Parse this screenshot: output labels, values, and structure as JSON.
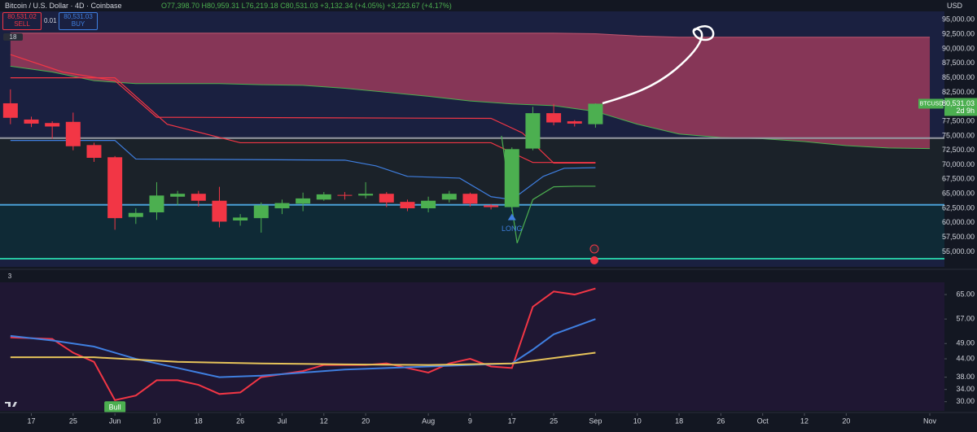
{
  "header": {
    "title": "Bitcoin / U.S. Dollar · 4D · Coinbase",
    "ohlc": "O77,398.70 H80,959.31 L76,219.18 C80,531.03 +3,132.34 (+4.05%) +3,223.67 (+4.17%)",
    "currency": "USD"
  },
  "trade": {
    "sell_price": "80,531.02",
    "sell": "SELL",
    "spread": "0.01",
    "buy_price": "80,531.03",
    "buy": "BUY"
  },
  "chart_data": [
    {
      "type": "candlestick",
      "pane_label": "18",
      "x": [
        0,
        4,
        8,
        12,
        16,
        20,
        24,
        28,
        32,
        36,
        40,
        44,
        48,
        52,
        56,
        60,
        64,
        68,
        72,
        76,
        80,
        84,
        88,
        92,
        96,
        100,
        104,
        108,
        112
      ],
      "open": [
        80600,
        77800,
        77200,
        77400,
        73400,
        71300,
        61000,
        61800,
        64500,
        65000,
        63800,
        60400,
        60800,
        62500,
        63300,
        64000,
        64800,
        64700,
        65000,
        63600,
        62500,
        64000,
        65000,
        63000,
        62700,
        72800,
        78900,
        77500,
        77000
      ],
      "high": [
        83000,
        78300,
        77500,
        79000,
        73800,
        71500,
        62500,
        67000,
        65500,
        65500,
        66200,
        61500,
        63500,
        64000,
        65200,
        65300,
        65300,
        67000,
        65300,
        64000,
        64500,
        65500,
        65200,
        63200,
        73000,
        80000,
        80500,
        77700,
        80600
      ],
      "low": [
        77000,
        76500,
        74500,
        72500,
        70500,
        58800,
        59800,
        60500,
        63000,
        62800,
        59200,
        59500,
        58300,
        61500,
        62000,
        63800,
        64000,
        64200,
        62700,
        62000,
        61800,
        63500,
        62800,
        62300,
        62000,
        72500,
        76800,
        76600,
        76400
      ],
      "close": [
        78100,
        77100,
        76600,
        73200,
        71200,
        60800,
        61700,
        64700,
        65000,
        63800,
        60200,
        60900,
        63000,
        63400,
        64200,
        64900,
        64700,
        65000,
        63500,
        62500,
        63800,
        65000,
        63300,
        62700,
        72700,
        78900,
        77300,
        77100,
        80531.03
      ],
      "up_color": "#4caf50",
      "down_color": "#f23645",
      "cloud": {
        "color": "#a13c5c",
        "x": [
          0,
          8,
          16,
          24,
          32,
          40,
          48,
          56,
          64,
          72,
          80,
          88,
          96,
          104,
          112,
          120,
          128,
          136,
          144,
          152,
          160,
          168,
          176
        ],
        "upper": [
          92700,
          92700,
          92700,
          92700,
          92700,
          92700,
          92700,
          92700,
          92700,
          92700,
          92700,
          92700,
          92700,
          92700,
          92600,
          92200,
          92000,
          92000,
          92000,
          92000,
          92000,
          92000,
          92000
        ],
        "lower": [
          87000,
          86000,
          84500,
          84000,
          84000,
          84000,
          83800,
          83700,
          83200,
          82500,
          81800,
          81000,
          80500,
          80200,
          79200,
          77000,
          75300,
          74700,
          74500,
          74000,
          73300,
          72900,
          72800
        ]
      },
      "lines": [
        {
          "color": "#f23645",
          "x": [
            0,
            10,
            20,
            28,
            92,
            98,
            104,
            112
          ],
          "values": [
            89000,
            86000,
            84500,
            78200,
            78000,
            75500,
            70300,
            70300
          ]
        },
        {
          "color": "#f23645",
          "x": [
            0,
            20,
            30,
            44,
            92,
            100,
            112
          ],
          "values": [
            85000,
            85000,
            77000,
            73800,
            73800,
            70400,
            70400
          ]
        },
        {
          "color": "#3f7fe0",
          "x": [
            0,
            20,
            24,
            64,
            70,
            76,
            86,
            92,
            96,
            102,
            106,
            112
          ],
          "values": [
            74200,
            74200,
            71000,
            70800,
            69800,
            68000,
            67700,
            64500,
            64000,
            68000,
            69400,
            69500
          ]
        },
        {
          "color": "#4caf50",
          "x": [
            94,
            97,
            100,
            104,
            108,
            112
          ],
          "values": [
            75000,
            56500,
            64000,
            66200,
            66300,
            66300
          ]
        }
      ],
      "hlines": [
        {
          "value": 74600,
          "color": "#9598a1"
        },
        {
          "value": 63100,
          "color": "#4a9fd6"
        },
        {
          "value": 53800,
          "color": "#26c6a0"
        }
      ],
      "annotations": [
        {
          "text": "LONG",
          "x": 96,
          "y": 58900,
          "color": "#3f7fe0"
        }
      ],
      "last_price": {
        "symbol": "BTCUSD",
        "value": 80531.03,
        "label": "80,531.03",
        "countdown": "2d 9h",
        "color": "#4caf50"
      },
      "xlim": [
        -2,
        178.8
      ],
      "xticks": [
        {
          "value": 4,
          "label": "17"
        },
        {
          "value": 12,
          "label": "25"
        },
        {
          "value": 20,
          "label": "Jun"
        },
        {
          "value": 28,
          "label": "10"
        },
        {
          "value": 36,
          "label": "18"
        },
        {
          "value": 44,
          "label": "26"
        },
        {
          "value": 52,
          "label": "Jul"
        },
        {
          "value": 60,
          "label": "12"
        },
        {
          "value": 68,
          "label": "20"
        },
        {
          "value": 80,
          "label": "Aug"
        },
        {
          "value": 88,
          "label": "9"
        },
        {
          "value": 96,
          "label": "17"
        },
        {
          "value": 104,
          "label": "25"
        },
        {
          "value": 112,
          "label": "Sep"
        },
        {
          "value": 120,
          "label": "10"
        },
        {
          "value": 128,
          "label": "18"
        },
        {
          "value": 136,
          "label": "26"
        },
        {
          "value": 144,
          "label": "Oct"
        },
        {
          "value": 152,
          "label": "12"
        },
        {
          "value": 160,
          "label": "20"
        },
        {
          "value": 176,
          "label": "Nov"
        }
      ],
      "ylim": [
        52400,
        96450
      ],
      "yticks": [
        {
          "value": 55000,
          "label": "55,000.00"
        },
        {
          "value": 57500,
          "label": "57,500.00"
        },
        {
          "value": 60000,
          "label": "60,000.00"
        },
        {
          "value": 62500,
          "label": "62,500.00"
        },
        {
          "value": 65000,
          "label": "65,000.00"
        },
        {
          "value": 67500,
          "label": "67,500.00"
        },
        {
          "value": 70000,
          "label": "70,000.00"
        },
        {
          "value": 72500,
          "label": "72,500.00"
        },
        {
          "value": 75000,
          "label": "75,000.00"
        },
        {
          "value": 77500,
          "label": "77,500.00"
        },
        {
          "value": 82500,
          "label": "82,500.00"
        },
        {
          "value": 85000,
          "label": "85,000.00"
        },
        {
          "value": 87500,
          "label": "87,500.00"
        },
        {
          "value": 90000,
          "label": "90,000.00"
        },
        {
          "value": 92500,
          "label": "92,500.00"
        },
        {
          "value": 95000,
          "label": "95,000.00"
        }
      ]
    },
    {
      "type": "line",
      "pane_label": "3",
      "series": [
        {
          "color": "#f23645",
          "x": [
            0,
            8,
            12,
            16,
            20,
            24,
            28,
            32,
            36,
            40,
            44,
            48,
            56,
            60,
            68,
            72,
            80,
            84,
            88,
            92,
            96,
            100,
            104,
            108,
            112
          ],
          "values": [
            51,
            50.5,
            46,
            43,
            30.5,
            32,
            37,
            37,
            35.5,
            32.5,
            33,
            38,
            40,
            42,
            42,
            42.5,
            39.5,
            42.5,
            44,
            41.5,
            41,
            61,
            66,
            65,
            67
          ]
        },
        {
          "color": "#3f7fe0",
          "x": [
            0,
            8,
            16,
            24,
            32,
            40,
            48,
            56,
            64,
            72,
            80,
            88,
            96,
            100,
            104,
            112
          ],
          "values": [
            51.5,
            50,
            48,
            44,
            41,
            38,
            38.5,
            39.5,
            40.5,
            41,
            41.5,
            42,
            42.5,
            47,
            52,
            57
          ]
        },
        {
          "color": "#e6c35a",
          "x": [
            0,
            16,
            32,
            48,
            64,
            80,
            96,
            112
          ],
          "values": [
            44.5,
            44.5,
            43,
            42.5,
            42.2,
            42,
            42.5,
            46
          ]
        }
      ],
      "annotations": [
        {
          "text": "Bull",
          "x": 20,
          "y": 28,
          "color": "#4caf50"
        }
      ],
      "xlim": [
        -2,
        178.8
      ],
      "ylim": [
        27,
        69
      ],
      "yticks": [
        {
          "value": 30,
          "label": "30.00"
        },
        {
          "value": 34,
          "label": "34.00"
        },
        {
          "value": 38,
          "label": "38.00"
        },
        {
          "value": 44,
          "label": "44.00"
        },
        {
          "value": 49,
          "label": "49.00"
        },
        {
          "value": 57,
          "label": "57.00"
        },
        {
          "value": 65,
          "label": "65.00"
        }
      ]
    }
  ]
}
